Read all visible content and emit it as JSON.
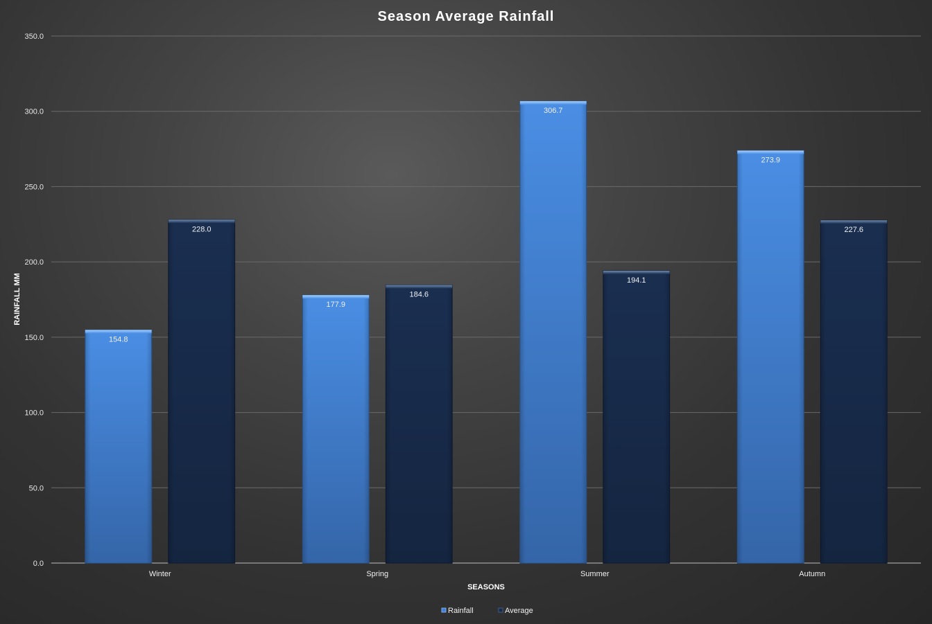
{
  "chart_data": {
    "type": "bar",
    "title": "Season Average Rainfall",
    "xlabel": "SEASONS",
    "ylabel": "RAINFALL MM",
    "categories": [
      "Winter",
      "Spring",
      "Summer",
      "Autumn"
    ],
    "series": [
      {
        "name": "Rainfall",
        "values": [
          154.8,
          177.9,
          306.7,
          273.9
        ],
        "color": "#3f80d6"
      },
      {
        "name": "Average",
        "values": [
          228.0,
          184.6,
          194.1,
          227.6
        ],
        "color": "#172a4a"
      }
    ],
    "ylim": [
      0,
      350
    ],
    "yticks": [
      "0.0",
      "50.0",
      "100.0",
      "150.0",
      "200.0",
      "250.0",
      "300.0",
      "350.0"
    ],
    "data_labels": [
      [
        "154.8",
        "177.9",
        "306.7",
        "273.9"
      ],
      [
        "228.0",
        "184.6",
        "194.1",
        "227.6"
      ]
    ],
    "grid": true,
    "legend_position": "bottom"
  }
}
